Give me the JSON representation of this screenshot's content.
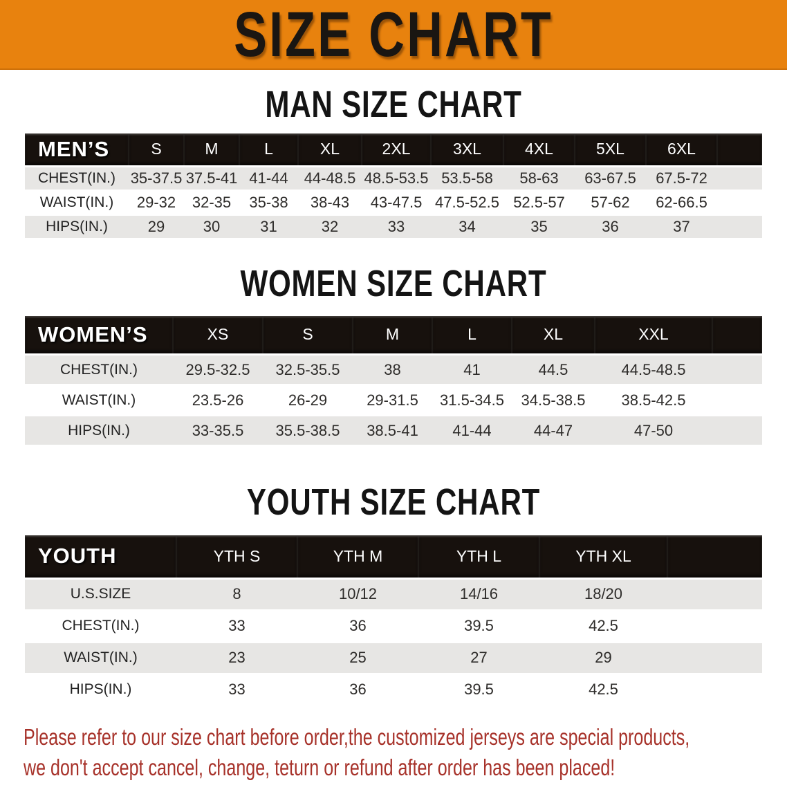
{
  "banner": {
    "title": "SIZE CHART",
    "background_color": "#E8820E",
    "title_color": "#1A1612"
  },
  "sections": [
    {
      "heading": "MAN SIZE CHART",
      "table": {
        "header_label": "MEN’S",
        "columns": [
          "S",
          "M",
          "L",
          "XL",
          "2XL",
          "3XL",
          "4XL",
          "5XL",
          "6XL"
        ],
        "rows": [
          {
            "label": "CHEST(IN.)",
            "values": [
              "35-37.5",
              "37.5-41",
              "41-44",
              "44-48.5",
              "48.5-53.5",
              "53.5-58",
              "58-63",
              "63-67.5",
              "67.5-72"
            ]
          },
          {
            "label": "WAIST(IN.)",
            "values": [
              "29-32",
              "32-35",
              "35-38",
              "38-43",
              "43-47.5",
              "47.5-52.5",
              "52.5-57",
              "57-62",
              "62-66.5"
            ]
          },
          {
            "label": "HIPS(IN.)",
            "values": [
              "29",
              "30",
              "31",
              "32",
              "33",
              "34",
              "35",
              "36",
              "37"
            ]
          }
        ]
      }
    },
    {
      "heading": "WOMEN SIZE CHART",
      "table": {
        "header_label": "WOMEN’S",
        "columns": [
          "XS",
          "S",
          "M",
          "L",
          "XL",
          "XXL"
        ],
        "rows": [
          {
            "label": "CHEST(IN.)",
            "values": [
              "29.5-32.5",
              "32.5-35.5",
              "38",
              "41",
              "44.5",
              "44.5-48.5"
            ]
          },
          {
            "label": "WAIST(IN.)",
            "values": [
              "23.5-26",
              "26-29",
              "29-31.5",
              "31.5-34.5",
              "34.5-38.5",
              "38.5-42.5"
            ]
          },
          {
            "label": "HIPS(IN.)",
            "values": [
              "33-35.5",
              "35.5-38.5",
              "38.5-41",
              "41-44",
              "44-47",
              "47-50"
            ]
          }
        ]
      }
    },
    {
      "heading": "YOUTH SIZE CHART",
      "table": {
        "header_label": "YOUTH",
        "columns": [
          "YTH S",
          "YTH M",
          "YTH L",
          "YTH XL"
        ],
        "rows": [
          {
            "label": "U.S.SIZE",
            "values": [
              "8",
              "10/12",
              "14/16",
              "18/20"
            ]
          },
          {
            "label": "CHEST(IN.)",
            "values": [
              "33",
              "36",
              "39.5",
              "42.5"
            ]
          },
          {
            "label": "WAIST(IN.)",
            "values": [
              "23",
              "25",
              "27",
              "29"
            ]
          },
          {
            "label": "HIPS(IN.)",
            "values": [
              "33",
              "36",
              "39.5",
              "42.5"
            ]
          }
        ]
      }
    }
  ],
  "style_colors": {
    "table_header_bg": "#17110D",
    "stripe_row_bg": "#E7E6E4",
    "notice_text": "#A7322A"
  },
  "footer": {
    "lines": [
      "Please refer to our size chart before order,the customized jerseys are special products,",
      "we don't accept cancel, change, teturn or refund after order has been placed!"
    ]
  }
}
